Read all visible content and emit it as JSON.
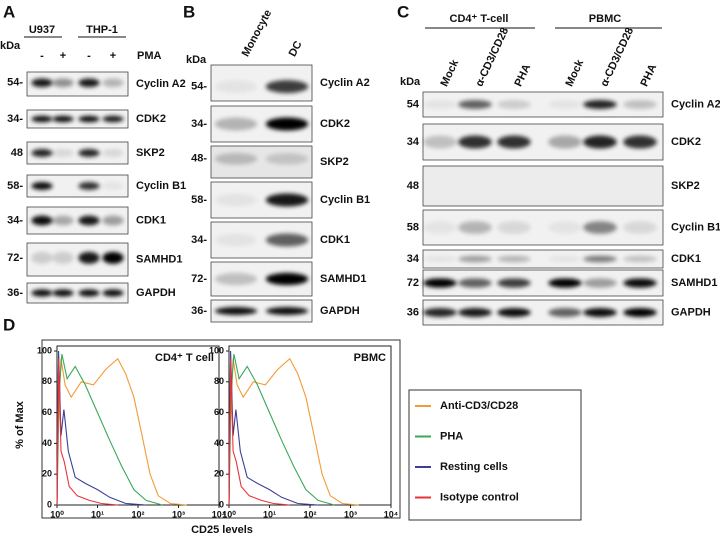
{
  "panel_a": {
    "letter": "A",
    "cell_lines": [
      "U937",
      "THP-1"
    ],
    "kda": "kDa",
    "treatment": "PMA",
    "lanes": [
      "-",
      "+",
      "-",
      "+"
    ],
    "markers": [
      "54-",
      "34-",
      "48",
      "58-",
      "34-",
      "72-",
      "36-"
    ],
    "proteins": [
      "Cyclin A2",
      "CDK2",
      "SKP2",
      "Cyclin B1",
      "CDK1",
      "SAMHD1",
      "GAPDH"
    ]
  },
  "panel_b": {
    "letter": "B",
    "samples": [
      "Monocyte",
      "DC"
    ],
    "kda": "kDa",
    "markers": [
      "54-",
      "34-",
      "48-",
      "58-",
      "34-",
      "72-",
      "36-"
    ],
    "proteins": [
      "Cyclin A2",
      "CDK2",
      "SKP2",
      "Cyclin B1",
      "CDK1",
      "SAMHD1",
      "GAPDH"
    ]
  },
  "panel_c": {
    "letter": "C",
    "groups": [
      "CD4⁺ T-cell",
      "PBMC"
    ],
    "kda": "kDa",
    "samples": [
      "Mock",
      "α-CD3/CD28",
      "PHA",
      "Mock",
      "α-CD3/CD28",
      "PHA"
    ],
    "markers": [
      "54",
      "34",
      "48",
      "58",
      "34",
      "72",
      "36"
    ],
    "proteins": [
      "Cyclin A2",
      "CDK2",
      "SKP2",
      "Cyclin B1",
      "CDK1",
      "SAMHD1",
      "GAPDH"
    ]
  },
  "panel_d": {
    "letter": "D",
    "y_label": "% of Max",
    "x_label": "CD25 levels",
    "plots": [
      {
        "title": "CD4⁺ T cell"
      },
      {
        "title": "PBMC"
      }
    ],
    "yticks": [
      "0",
      "20",
      "40",
      "60",
      "80",
      "100"
    ],
    "xticks": [
      "10⁰",
      "10¹",
      "10²",
      "10³",
      "10⁴"
    ],
    "legend": [
      {
        "label": "Anti-CD3/CD28",
        "color": "#f29b38"
      },
      {
        "label": "PHA",
        "color": "#3aa857"
      },
      {
        "label": "Resting cells",
        "color": "#3c3f9a"
      },
      {
        "label": "Isotype control",
        "color": "#e8323a"
      }
    ]
  }
}
